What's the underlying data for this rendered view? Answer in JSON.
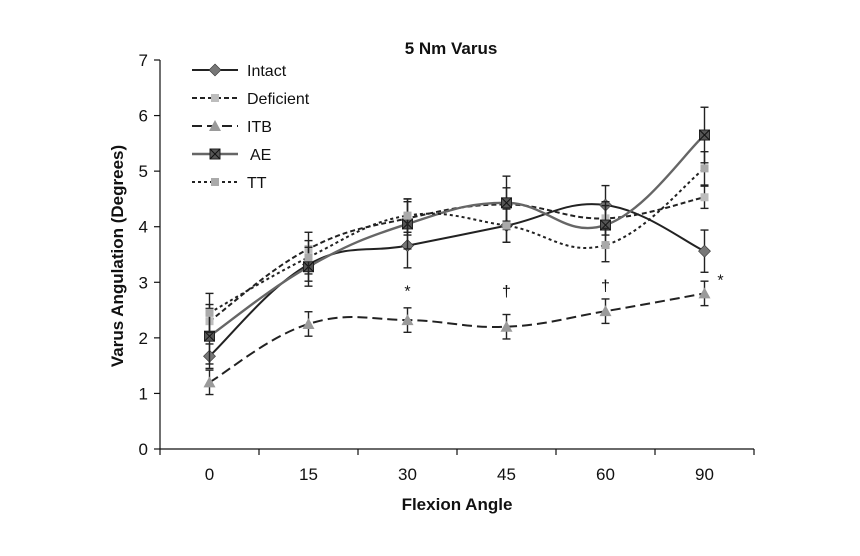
{
  "chart_data": {
    "type": "line",
    "title": "5 Nm Varus",
    "xlabel": "Flexion Angle",
    "ylabel": "Varus Angulation (Degrees)",
    "categories": [
      "0",
      "15",
      "30",
      "45",
      "60",
      "90"
    ],
    "ylim": [
      0,
      7
    ],
    "yticks": [
      "0",
      "1",
      "2",
      "3",
      "4",
      "5",
      "6",
      "7"
    ],
    "legend_position": "top-left",
    "series": [
      {
        "name": "Intact",
        "values": [
          1.67,
          3.32,
          3.66,
          4.02,
          4.39,
          3.56
        ],
        "errors": [
          0.22,
          0.3,
          0.4,
          0.3,
          0.35,
          0.38
        ],
        "color": "#222222",
        "dash": "solid",
        "marker": "diamond",
        "marker_color": "#777777"
      },
      {
        "name": "Deficient",
        "values": [
          2.3,
          3.6,
          4.15,
          4.4,
          4.15,
          4.53
        ],
        "errors": [
          0.3,
          0.3,
          0.3,
          0.3,
          0.3,
          0.2
        ],
        "color": "#222222",
        "dash": "short",
        "marker": "square",
        "marker_color": "#bdbdbd"
      },
      {
        "name": "ITB",
        "values": [
          1.2,
          2.25,
          2.32,
          2.2,
          2.48,
          2.8
        ],
        "errors": [
          0.22,
          0.22,
          0.22,
          0.22,
          0.22,
          0.22
        ],
        "color": "#222222",
        "dash": "long",
        "marker": "triangle",
        "marker_color": "#9a9a9a"
      },
      {
        "name": "AE",
        "values": [
          2.03,
          3.28,
          4.05,
          4.43,
          4.03,
          5.65
        ],
        "errors": [
          0.5,
          0.35,
          0.45,
          0.48,
          0.35,
          0.5
        ],
        "color": "#666666",
        "dash": "solid",
        "marker": "xsquare",
        "marker_color": "#555555"
      },
      {
        "name": "TT",
        "values": [
          2.45,
          3.45,
          4.2,
          4.02,
          3.67,
          5.05
        ],
        "errors": [
          0.35,
          0.3,
          0.3,
          0.3,
          0.3,
          0.3
        ],
        "color": "#222222",
        "dash": "dot",
        "marker": "square",
        "marker_color": "#aaaaaa"
      }
    ],
    "annotations": [
      {
        "category": "30",
        "y": 2.85,
        "text": "*"
      },
      {
        "category": "45",
        "y": 2.85,
        "text": "†"
      },
      {
        "category": "60",
        "y": 2.95,
        "text": "†"
      },
      {
        "category": "90",
        "y": 3.05,
        "text": "*"
      }
    ]
  }
}
